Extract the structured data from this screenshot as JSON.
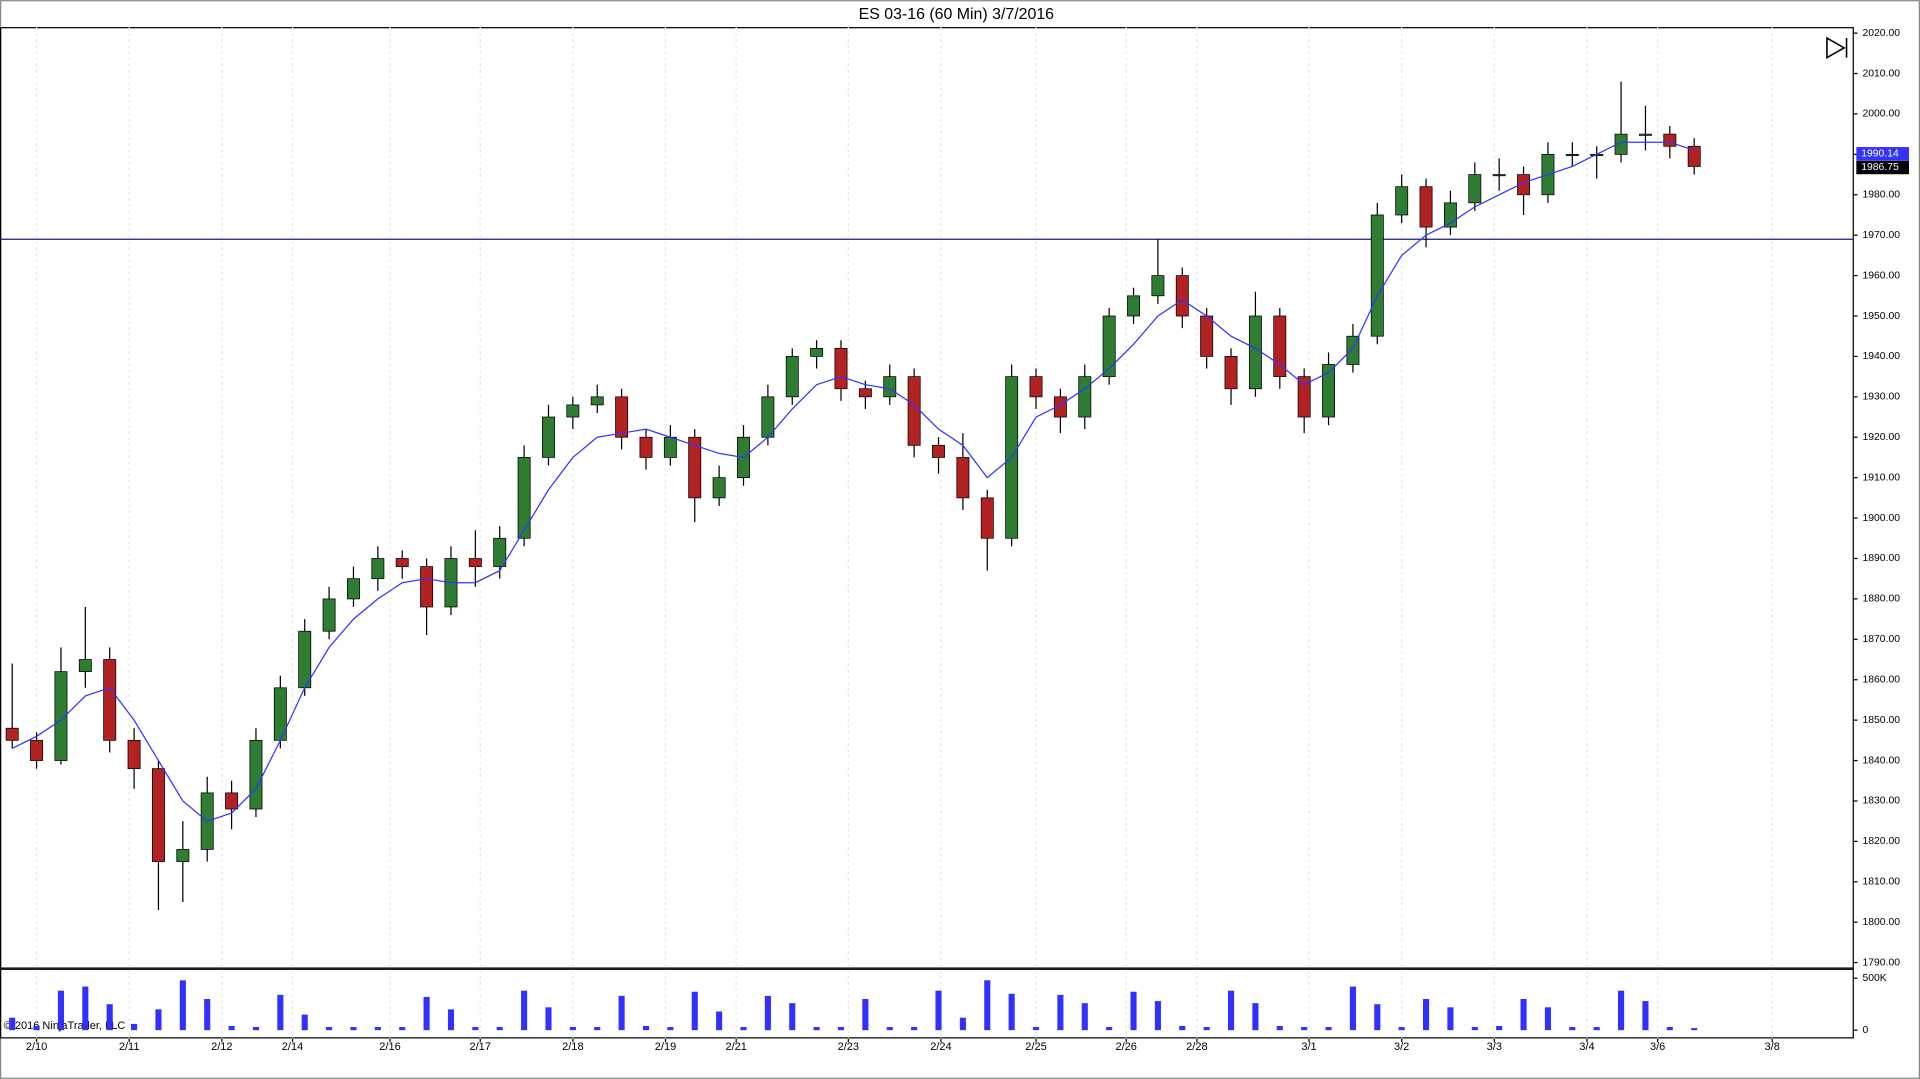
{
  "chart_data": {
    "type": "candlestick",
    "title": "ES 03-16 (60 Min)  3/7/2016",
    "copyright": "© 2016 NinjaTrader, LLC",
    "up_color": "#2e7d32",
    "down_color": "#b22222",
    "ma_color": "#3333ff",
    "hline_color": "#1a1a8c",
    "x": [
      0.5,
      1.5,
      2.5,
      3.5,
      4.5,
      5.5,
      6.5,
      7.5,
      8.5,
      9.5,
      10.5,
      11.5,
      12.5,
      13.5,
      14.5,
      15.5,
      16.5,
      17.5,
      18.5,
      19.5,
      20.5,
      21.5,
      22.5,
      23.5,
      24.5,
      25.5,
      26.5,
      27.5,
      28.5,
      29.5,
      30.5,
      31.5,
      32.5,
      33.5,
      34.5,
      35.5,
      36.5,
      37.5,
      38.5,
      39.5,
      40.5,
      41.5,
      42.5,
      43.5,
      44.5,
      45.5,
      46.5,
      47.5,
      48.5,
      49.5,
      50.5,
      51.5,
      52.5,
      53.5,
      54.5,
      55.5,
      56.5,
      57.5,
      58.5,
      59.5,
      60.5,
      61.5,
      62.5,
      63.5,
      64.5,
      65.5,
      66.5,
      67.5,
      68.5,
      69.5
    ],
    "open": [
      1848,
      1845,
      1840,
      1862,
      1865,
      1845,
      1838,
      1815,
      1818,
      1832,
      1828,
      1845,
      1858,
      1872,
      1880,
      1885,
      1890,
      1888,
      1878,
      1890,
      1888,
      1895,
      1915,
      1925,
      1928,
      1930,
      1920,
      1915,
      1920,
      1905,
      1910,
      1920,
      1930,
      1940,
      1942,
      1932,
      1930,
      1935,
      1918,
      1915,
      1905,
      1895,
      1935,
      1930,
      1925,
      1935,
      1950,
      1955,
      1960,
      1950,
      1940,
      1932,
      1950,
      1935,
      1925,
      1938,
      1945,
      1975,
      1982,
      1972,
      1978,
      1985,
      1985,
      1980,
      1990,
      1990,
      1990,
      1995,
      1995,
      1992
    ],
    "high": [
      1864,
      1847,
      1868,
      1878,
      1868,
      1848,
      1840,
      1825,
      1836,
      1835,
      1848,
      1861,
      1875,
      1883,
      1888,
      1893,
      1892,
      1890,
      1893,
      1897,
      1898,
      1918,
      1928,
      1930,
      1933,
      1932,
      1922,
      1923,
      1922,
      1913,
      1923,
      1933,
      1942,
      1944,
      1944,
      1934,
      1938,
      1937,
      1920,
      1921,
      1907,
      1938,
      1937,
      1932,
      1938,
      1952,
      1957,
      1969,
      1962,
      1952,
      1942,
      1956,
      1952,
      1937,
      1941,
      1948,
      1978,
      1985,
      1984,
      1981,
      1988,
      1989,
      1987,
      1993,
      1993,
      1992,
      2008,
      2002,
      1997,
      1994
    ],
    "low": [
      1843,
      1838,
      1839,
      1858,
      1842,
      1833,
      1803,
      1805,
      1815,
      1823,
      1826,
      1843,
      1856,
      1870,
      1878,
      1882,
      1885,
      1871,
      1876,
      1883,
      1885,
      1893,
      1913,
      1922,
      1926,
      1917,
      1912,
      1913,
      1899,
      1903,
      1908,
      1918,
      1928,
      1937,
      1929,
      1927,
      1928,
      1915,
      1911,
      1902,
      1887,
      1893,
      1927,
      1921,
      1922,
      1933,
      1948,
      1953,
      1947,
      1937,
      1928,
      1930,
      1932,
      1921,
      1923,
      1936,
      1943,
      1973,
      1967,
      1970,
      1976,
      1981,
      1975,
      1978,
      1987,
      1984,
      1988,
      1991,
      1989,
      1985
    ],
    "close": [
      1845,
      1840,
      1862,
      1865,
      1845,
      1838,
      1815,
      1818,
      1832,
      1828,
      1845,
      1858,
      1872,
      1880,
      1885,
      1890,
      1888,
      1878,
      1890,
      1888,
      1895,
      1915,
      1925,
      1928,
      1930,
      1920,
      1915,
      1920,
      1905,
      1910,
      1920,
      1930,
      1940,
      1942,
      1932,
      1930,
      1935,
      1918,
      1915,
      1905,
      1895,
      1935,
      1930,
      1925,
      1935,
      1950,
      1955,
      1960,
      1950,
      1940,
      1932,
      1950,
      1935,
      1925,
      1938,
      1945,
      1975,
      1982,
      1972,
      1978,
      1985,
      1985,
      1980,
      1990,
      1990,
      1990,
      1995,
      1995,
      1992,
      1987
    ],
    "ma": [
      1843,
      1846,
      1850,
      1856,
      1858,
      1850,
      1840,
      1830,
      1825,
      1827,
      1833,
      1845,
      1858,
      1868,
      1875,
      1880,
      1884,
      1885,
      1884,
      1884,
      1887,
      1897,
      1907,
      1915,
      1920,
      1921,
      1922,
      1920,
      1918,
      1916,
      1915,
      1920,
      1927,
      1933,
      1935,
      1933,
      1932,
      1928,
      1922,
      1918,
      1910,
      1915,
      1925,
      1928,
      1932,
      1937,
      1943,
      1950,
      1954,
      1950,
      1945,
      1942,
      1938,
      1933,
      1936,
      1942,
      1955,
      1965,
      1970,
      1973,
      1977,
      1980,
      1983,
      1985,
      1987,
      1990,
      1993,
      1993,
      1993,
      1991
    ],
    "xlim": [
      0,
      76
    ],
    "xticks": [
      {
        "value": 1.5,
        "label": "2/10"
      },
      {
        "value": 5.3,
        "label": "2/11"
      },
      {
        "value": 9.1,
        "label": "2/12"
      },
      {
        "value": 12.0,
        "label": "2/14"
      },
      {
        "value": 16.0,
        "label": "2/16"
      },
      {
        "value": 19.7,
        "label": "2/17"
      },
      {
        "value": 23.5,
        "label": "2/18"
      },
      {
        "value": 27.3,
        "label": "2/19"
      },
      {
        "value": 30.2,
        "label": "2/21"
      },
      {
        "value": 34.8,
        "label": "2/23"
      },
      {
        "value": 38.6,
        "label": "2/24"
      },
      {
        "value": 42.5,
        "label": "2/25"
      },
      {
        "value": 46.2,
        "label": "2/26"
      },
      {
        "value": 49.1,
        "label": "2/28"
      },
      {
        "value": 53.7,
        "label": "3/1"
      },
      {
        "value": 57.5,
        "label": "3/2"
      },
      {
        "value": 61.3,
        "label": "3/3"
      },
      {
        "value": 65.1,
        "label": "3/4"
      },
      {
        "value": 68.0,
        "label": "3/6"
      },
      {
        "value": 72.7,
        "label": "3/8"
      }
    ],
    "ylim": [
      1788.8,
      2021.5
    ],
    "yticks": [
      {
        "value": 1790,
        "label": "1790.00"
      },
      {
        "value": 1800,
        "label": "1800.00"
      },
      {
        "value": 1810,
        "label": "1810.00"
      },
      {
        "value": 1820,
        "label": "1820.00"
      },
      {
        "value": 1830,
        "label": "1830.00"
      },
      {
        "value": 1840,
        "label": "1840.00"
      },
      {
        "value": 1850,
        "label": "1850.00"
      },
      {
        "value": 1860,
        "label": "1860.00"
      },
      {
        "value": 1870,
        "label": "1870.00"
      },
      {
        "value": 1880,
        "label": "1880.00"
      },
      {
        "value": 1890,
        "label": "1890.00"
      },
      {
        "value": 1900,
        "label": "1900.00"
      },
      {
        "value": 1910,
        "label": "1910.00"
      },
      {
        "value": 1920,
        "label": "1920.00"
      },
      {
        "value": 1930,
        "label": "1930.00"
      },
      {
        "value": 1940,
        "label": "1940.00"
      },
      {
        "value": 1950,
        "label": "1950.00"
      },
      {
        "value": 1960,
        "label": "1960.00"
      },
      {
        "value": 1970,
        "label": "1970.00"
      },
      {
        "value": 1980,
        "label": "1980.00"
      },
      {
        "value": 1990,
        "label": "1990.00"
      },
      {
        "value": 2000,
        "label": "2000.00"
      },
      {
        "value": 2010,
        "label": "2010.00"
      },
      {
        "value": 2020,
        "label": "2020.00"
      }
    ],
    "hline": 1969,
    "ma_last": 1990.14,
    "last_price": 1986.75,
    "volume": {
      "color": "#3030ff",
      "ylim": [
        -80000,
        580000
      ],
      "yticks": [
        0,
        {
          "value": 500000,
          "label": "500K"
        }
      ],
      "values": [
        120000,
        40000,
        380000,
        420000,
        250000,
        60000,
        200000,
        480000,
        300000,
        40000,
        30000,
        340000,
        150000,
        30000,
        30000,
        30000,
        30000,
        320000,
        200000,
        30000,
        30000,
        380000,
        220000,
        30000,
        30000,
        330000,
        40000,
        30000,
        370000,
        180000,
        30000,
        330000,
        260000,
        30000,
        30000,
        300000,
        30000,
        30000,
        380000,
        120000,
        480000,
        350000,
        30000,
        340000,
        260000,
        30000,
        370000,
        280000,
        40000,
        30000,
        380000,
        260000,
        40000,
        30000,
        30000,
        420000,
        250000,
        30000,
        300000,
        220000,
        30000,
        40000,
        300000,
        220000,
        30000,
        30000,
        380000,
        280000,
        30000,
        20000
      ]
    }
  }
}
